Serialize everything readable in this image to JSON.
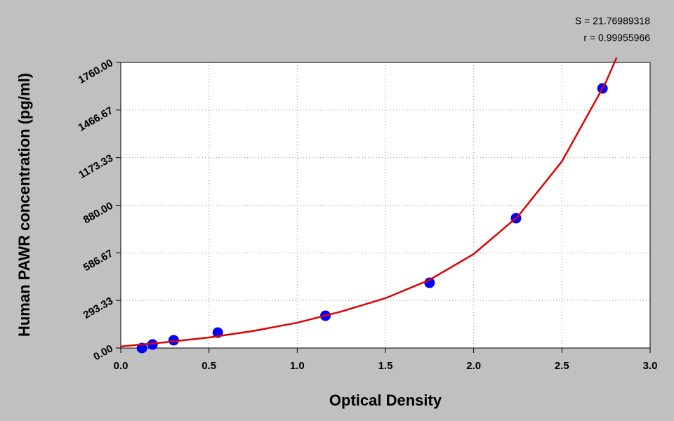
{
  "chart_data": {
    "type": "scatter",
    "xlabel": "Optical Density",
    "ylabel": "Human PAWR  concentration (pg/ml)",
    "annotations": [
      "S = 21.76989318",
      "r = 0.99955966"
    ],
    "xlim": [
      0,
      3
    ],
    "ylim": [
      0,
      1760
    ],
    "xticks": [
      {
        "value": 0,
        "label": "0.0"
      },
      {
        "value": 0.5,
        "label": "0.5"
      },
      {
        "value": 1,
        "label": "1.0"
      },
      {
        "value": 1.5,
        "label": "1.5"
      },
      {
        "value": 2,
        "label": "2.0"
      },
      {
        "value": 2.5,
        "label": "2.5"
      },
      {
        "value": 3,
        "label": "3.0"
      }
    ],
    "yticks": [
      {
        "value": 0,
        "label": "0.00"
      },
      {
        "value": 293.33,
        "label": "293.33"
      },
      {
        "value": 586.67,
        "label": "586.67"
      },
      {
        "value": 880,
        "label": "880.00"
      },
      {
        "value": 1173.33,
        "label": "1173.33"
      },
      {
        "value": 1466.67,
        "label": "1466.67"
      },
      {
        "value": 1760,
        "label": "1760.00"
      }
    ],
    "grid": true,
    "series": [
      {
        "style": "markers",
        "color": "#0000ff",
        "x": [
          0.12,
          0.18,
          0.3,
          0.55,
          1.16,
          1.75,
          2.24,
          2.73
        ],
        "values": [
          0,
          22,
          48,
          95,
          199,
          402,
          800,
          1600
        ]
      },
      {
        "style": "line",
        "color": "#e00000",
        "x": [
          0,
          0.25,
          0.5,
          0.75,
          1,
          1.25,
          1.5,
          1.75,
          2,
          2.25,
          2.5,
          2.75,
          2.81
        ],
        "values": [
          10,
          35,
          65,
          105,
          156,
          225,
          307,
          420,
          579,
          810,
          1150,
          1640,
          1790
        ]
      }
    ]
  }
}
